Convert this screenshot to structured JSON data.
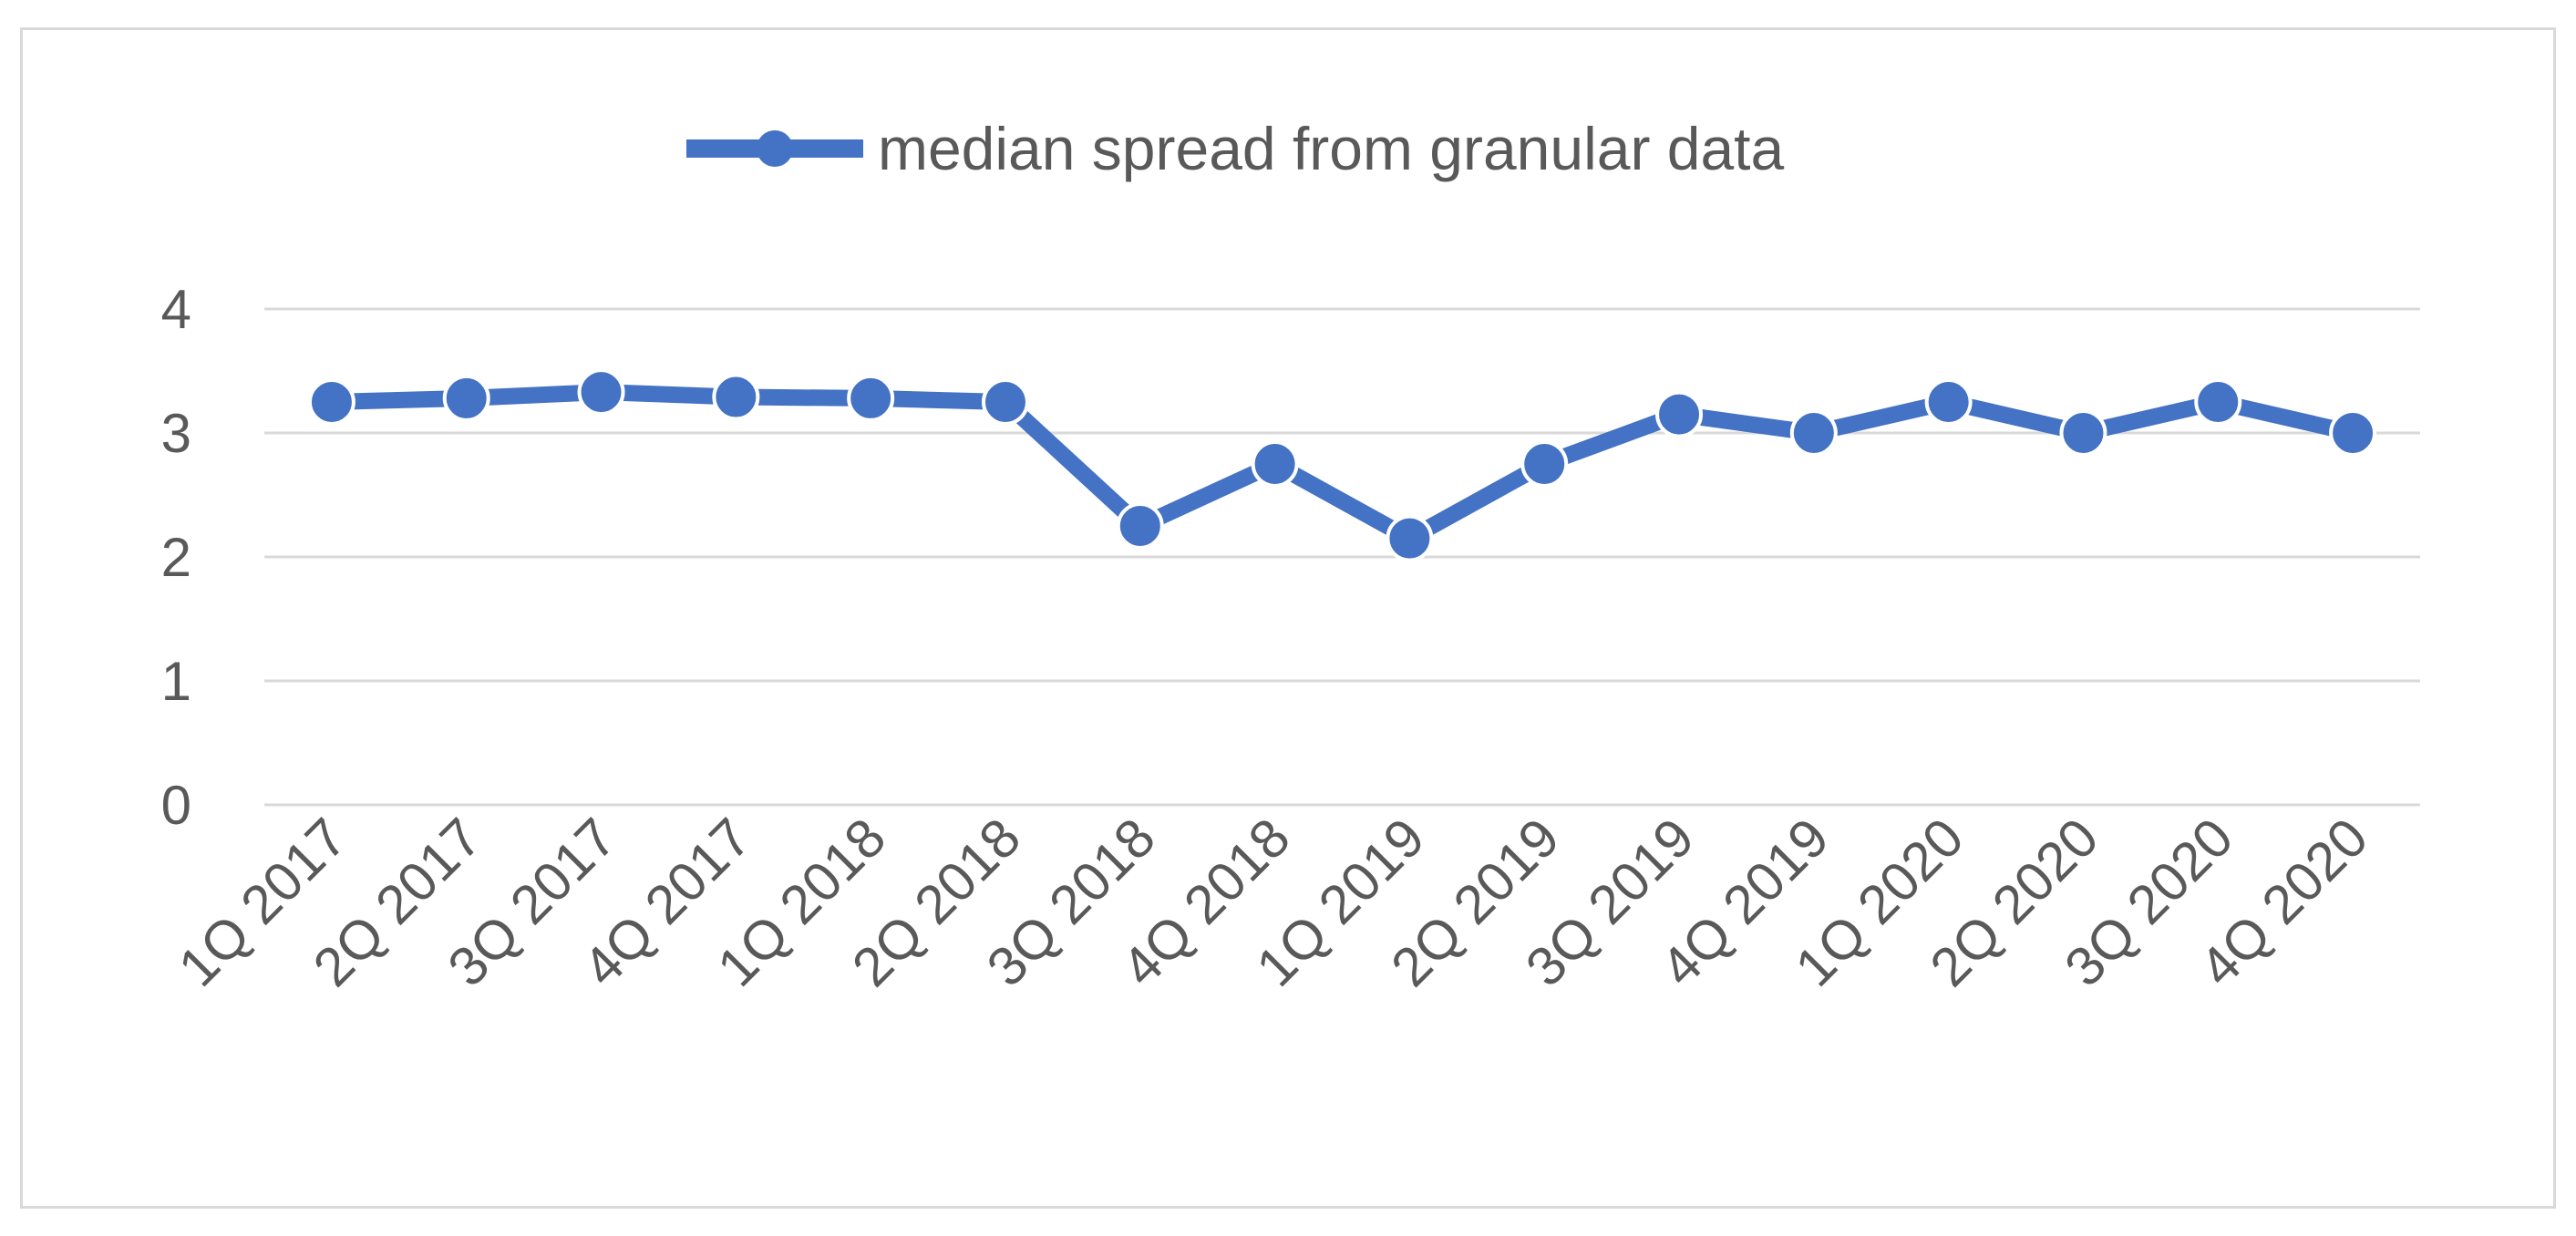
{
  "chart_data": {
    "type": "line",
    "categories": [
      "1Q 2017",
      "2Q 2017",
      "3Q 2017",
      "4Q 2017",
      "1Q 2018",
      "2Q 2018",
      "3Q 2018",
      "4Q 2018",
      "1Q 2019",
      "2Q 2019",
      "3Q 2019",
      "4Q 2019",
      "1Q 2020",
      "2Q 2020",
      "3Q 2020",
      "4Q 2020"
    ],
    "series": [
      {
        "name": "median spread from granular data",
        "color": "#4472c4",
        "marker": "circle",
        "values": [
          3.25,
          3.28,
          3.33,
          3.29,
          3.28,
          3.25,
          2.25,
          2.75,
          2.15,
          2.75,
          3.15,
          3.0,
          3.25,
          3.0,
          3.25,
          3.0
        ]
      }
    ],
    "title": "",
    "xlabel": "",
    "ylabel": "",
    "ylim": [
      0,
      4
    ],
    "yticks": [
      0,
      1,
      2,
      3,
      4
    ],
    "grid": true,
    "legend": "top-center",
    "xtick_rotation": -45
  }
}
